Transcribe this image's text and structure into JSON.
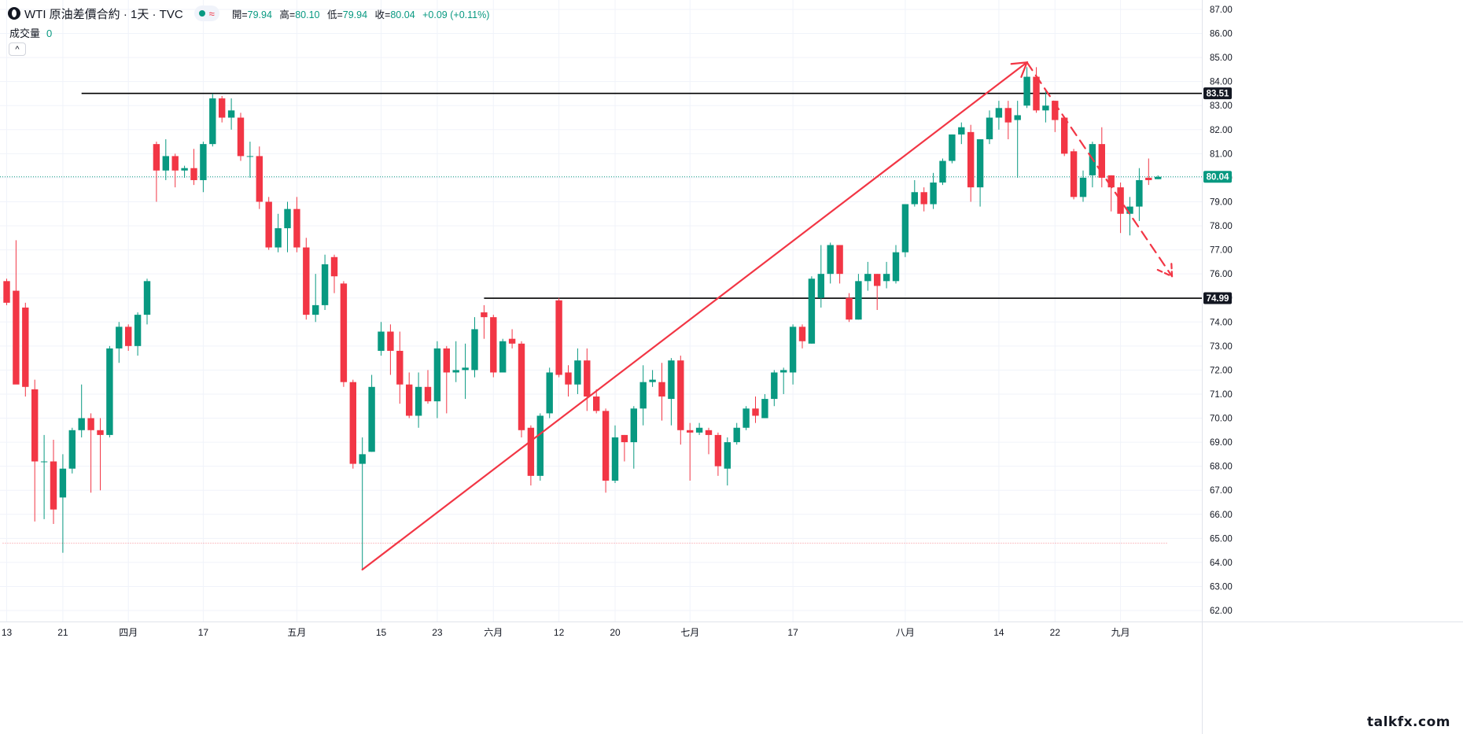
{
  "header": {
    "title": "WTI 原油差價合約 · 1天 · TVC",
    "wave_glyph": "≈",
    "open_label": "開=",
    "open": "79.94",
    "high_label": "高=",
    "high": "80.10",
    "low_label": "低=",
    "low": "79.94",
    "close_label": "收=",
    "close": "80.04",
    "change": "+0.09 (+0.11%)"
  },
  "volume": {
    "label": "成交量",
    "value": "0"
  },
  "collapse_glyph": "^",
  "watermark": "talkfx.com",
  "colors": {
    "up": "#089981",
    "down": "#f23645",
    "annotation": "#f23645",
    "level": "#000000"
  },
  "chart_data": {
    "type": "candlestick",
    "symbol": "WTI 原油差價合約",
    "interval": "1天",
    "y_range": [
      61.6,
      87.3
    ],
    "y_ticks": [
      62,
      63,
      64,
      65,
      66,
      67,
      68,
      69,
      70,
      71,
      72,
      73,
      74,
      75,
      76,
      77,
      78,
      79,
      80,
      81,
      82,
      83,
      84,
      85,
      86,
      87
    ],
    "x_labels": [
      {
        "label": "13",
        "index": 0
      },
      {
        "label": "21",
        "index": 6
      },
      {
        "label": "四月",
        "index": 13
      },
      {
        "label": "17",
        "index": 21
      },
      {
        "label": "五月",
        "index": 31
      },
      {
        "label": "15",
        "index": 40
      },
      {
        "label": "23",
        "index": 46
      },
      {
        "label": "六月",
        "index": 52
      },
      {
        "label": "12",
        "index": 59
      },
      {
        "label": "20",
        "index": 65
      },
      {
        "label": "七月",
        "index": 73
      },
      {
        "label": "17",
        "index": 84
      },
      {
        "label": "八月",
        "index": 96
      },
      {
        "label": "14",
        "index": 106
      },
      {
        "label": "22",
        "index": 112
      },
      {
        "label": "九月",
        "index": 119
      }
    ],
    "candles": [
      [
        0,
        75.7,
        74.8,
        75.8,
        74.7
      ],
      [
        1,
        75.3,
        71.4,
        77.4,
        72.3
      ],
      [
        2,
        74.6,
        71.3,
        74.8,
        70.9
      ],
      [
        3,
        71.2,
        68.2,
        71.6,
        65.7
      ],
      [
        4,
        68.2,
        68.2,
        69.3,
        65.8
      ],
      [
        5,
        68.2,
        66.2,
        69.1,
        65.6
      ],
      [
        6,
        66.7,
        67.9,
        68.5,
        64.4
      ],
      [
        7,
        67.9,
        69.5,
        69.6,
        67.7
      ],
      [
        8,
        69.5,
        70.0,
        71.4,
        69.2
      ],
      [
        9,
        70.0,
        69.5,
        70.2,
        66.9
      ],
      [
        10,
        69.5,
        69.3,
        70.0,
        67.0
      ],
      [
        11,
        69.3,
        72.9,
        73.0,
        69.2
      ],
      [
        12,
        72.9,
        73.8,
        74.0,
        72.3
      ],
      [
        13,
        73.8,
        73.0,
        73.9,
        72.8
      ],
      [
        14,
        73.0,
        74.3,
        74.4,
        72.6
      ],
      [
        15,
        74.3,
        75.7,
        75.8,
        73.9
      ],
      [
        16,
        81.4,
        80.3,
        81.5,
        79.0
      ],
      [
        17,
        80.3,
        80.9,
        81.6,
        79.9
      ],
      [
        18,
        80.9,
        80.3,
        81.0,
        79.6
      ],
      [
        19,
        80.3,
        80.4,
        80.5,
        80.0
      ],
      [
        20,
        80.4,
        79.9,
        81.2,
        79.7
      ],
      [
        21,
        79.9,
        81.4,
        81.5,
        79.4
      ],
      [
        22,
        81.4,
        83.3,
        83.5,
        81.3
      ],
      [
        23,
        83.3,
        82.5,
        83.4,
        82.3
      ],
      [
        24,
        82.5,
        82.8,
        83.3,
        82.0
      ],
      [
        25,
        82.5,
        80.9,
        82.7,
        80.7
      ],
      [
        26,
        80.9,
        80.9,
        81.5,
        80.0
      ],
      [
        27,
        80.9,
        79.0,
        81.3,
        78.7
      ],
      [
        28,
        79.0,
        77.1,
        79.2,
        77.0
      ],
      [
        29,
        77.1,
        77.9,
        78.5,
        76.9
      ],
      [
        30,
        77.9,
        78.7,
        79.0,
        76.9
      ],
      [
        31,
        78.7,
        77.1,
        79.2,
        76.9
      ],
      [
        32,
        77.1,
        74.3,
        77.5,
        74.1
      ],
      [
        33,
        74.3,
        74.7,
        76.0,
        74.0
      ],
      [
        34,
        74.7,
        76.4,
        76.8,
        74.5
      ],
      [
        35,
        76.7,
        75.9,
        76.8,
        75.2
      ],
      [
        36,
        75.6,
        71.5,
        75.7,
        71.3
      ],
      [
        37,
        71.5,
        68.1,
        71.6,
        67.9
      ],
      [
        38,
        68.1,
        68.5,
        69.2,
        63.7
      ],
      [
        39,
        68.6,
        71.3,
        71.8,
        68.6
      ],
      [
        40,
        72.8,
        73.6,
        74.0,
        72.6
      ],
      [
        41,
        73.6,
        72.8,
        73.9,
        71.8
      ],
      [
        42,
        72.8,
        71.4,
        73.6,
        70.6
      ],
      [
        43,
        71.4,
        70.1,
        71.9,
        70.0
      ],
      [
        44,
        70.1,
        71.3,
        71.9,
        69.6
      ],
      [
        45,
        71.3,
        70.7,
        72.0,
        70.6
      ],
      [
        46,
        70.7,
        72.9,
        73.2,
        70.0
      ],
      [
        47,
        72.9,
        71.9,
        73.0,
        70.2
      ],
      [
        48,
        71.9,
        72.0,
        73.2,
        71.5
      ],
      [
        49,
        72.0,
        72.1,
        73.1,
        70.8
      ],
      [
        50,
        72.0,
        73.7,
        74.2,
        71.7
      ],
      [
        51,
        74.4,
        74.2,
        74.7,
        73.3
      ],
      [
        52,
        74.2,
        71.9,
        74.3,
        71.7
      ],
      [
        53,
        71.9,
        73.2,
        73.3,
        72.0
      ],
      [
        54,
        73.3,
        73.1,
        73.7,
        72.9
      ],
      [
        55,
        73.1,
        69.5,
        73.2,
        69.2
      ],
      [
        56,
        69.6,
        67.6,
        69.7,
        67.2
      ],
      [
        57,
        67.6,
        70.1,
        70.2,
        67.4
      ],
      [
        58,
        70.2,
        71.9,
        72.1,
        70.0
      ],
      [
        59,
        74.9,
        71.8,
        75.0,
        71.7
      ],
      [
        60,
        71.9,
        71.4,
        72.2,
        70.9
      ],
      [
        61,
        71.4,
        72.4,
        72.9,
        71.0
      ],
      [
        62,
        72.4,
        70.9,
        72.9,
        70.3
      ],
      [
        63,
        70.9,
        70.3,
        71.2,
        70.2
      ],
      [
        64,
        70.3,
        67.4,
        70.4,
        66.9
      ],
      [
        65,
        67.4,
        69.2,
        69.7,
        67.3
      ],
      [
        66,
        69.3,
        69.0,
        69.3,
        68.2
      ],
      [
        67,
        69.0,
        70.4,
        70.5,
        67.9
      ],
      [
        68,
        70.4,
        71.5,
        72.2,
        69.7
      ],
      [
        69,
        71.5,
        71.6,
        72.0,
        71.3
      ],
      [
        70,
        71.5,
        70.9,
        72.3,
        69.9
      ],
      [
        71,
        70.8,
        72.4,
        72.5,
        69.7
      ],
      [
        72,
        72.4,
        69.5,
        72.6,
        68.9
      ],
      [
        73,
        69.5,
        69.4,
        69.8,
        67.4
      ],
      [
        74,
        69.4,
        69.6,
        69.8,
        69.3
      ],
      [
        75,
        69.5,
        69.3,
        69.6,
        68.5
      ],
      [
        76,
        69.3,
        68.0,
        69.4,
        67.6
      ],
      [
        77,
        67.9,
        69.0,
        69.2,
        67.2
      ],
      [
        78,
        69.0,
        69.6,
        69.8,
        68.9
      ],
      [
        79,
        69.6,
        70.4,
        70.5,
        69.5
      ],
      [
        80,
        70.4,
        70.1,
        70.9,
        69.8
      ],
      [
        81,
        70.0,
        70.8,
        71.0,
        70.0
      ],
      [
        82,
        70.8,
        71.9,
        72.0,
        70.5
      ],
      [
        83,
        71.9,
        72.0,
        72.1,
        71.0
      ],
      [
        84,
        71.9,
        73.8,
        73.9,
        71.4
      ],
      [
        85,
        73.8,
        73.2,
        73.9,
        72.9
      ],
      [
        86,
        73.1,
        75.8,
        75.9,
        73.1
      ],
      [
        87,
        75.0,
        76.0,
        77.2,
        74.6
      ],
      [
        88,
        76.0,
        77.2,
        77.3,
        75.6
      ],
      [
        89,
        77.2,
        76.0,
        77.2,
        75.6
      ],
      [
        90,
        75.0,
        74.1,
        75.2,
        74.0
      ],
      [
        91,
        74.1,
        75.7,
        76.0,
        74.1
      ],
      [
        92,
        75.7,
        76.0,
        76.5,
        75.3
      ],
      [
        93,
        76.0,
        75.5,
        76.0,
        74.5
      ],
      [
        94,
        75.7,
        76.0,
        76.5,
        75.4
      ],
      [
        95,
        75.7,
        76.9,
        77.2,
        75.6
      ],
      [
        96,
        76.9,
        78.9,
        78.9,
        76.7
      ],
      [
        97,
        78.9,
        79.4,
        79.9,
        78.8
      ],
      [
        98,
        79.4,
        78.9,
        79.6,
        78.6
      ],
      [
        99,
        78.9,
        79.8,
        80.2,
        78.7
      ],
      [
        100,
        79.8,
        80.7,
        80.8,
        79.7
      ],
      [
        101,
        80.7,
        81.8,
        81.8,
        80.6
      ],
      [
        102,
        81.8,
        82.1,
        82.3,
        81.4
      ],
      [
        103,
        81.9,
        79.6,
        82.2,
        79.0
      ],
      [
        104,
        79.6,
        81.6,
        81.6,
        78.8
      ],
      [
        105,
        81.6,
        82.5,
        82.8,
        81.4
      ],
      [
        106,
        82.5,
        82.9,
        83.2,
        82.0
      ],
      [
        107,
        82.9,
        82.3,
        83.2,
        81.6
      ],
      [
        108,
        82.4,
        82.6,
        83.2,
        80.0
      ],
      [
        109,
        83.0,
        84.2,
        84.6,
        82.9
      ],
      [
        110,
        84.2,
        82.8,
        84.6,
        82.7
      ],
      [
        111,
        82.8,
        83.0,
        83.7,
        82.3
      ],
      [
        112,
        83.2,
        82.4,
        83.2,
        81.9
      ],
      [
        113,
        82.5,
        81.0,
        82.5,
        80.9
      ],
      [
        114,
        81.1,
        79.2,
        81.2,
        79.1
      ],
      [
        115,
        79.2,
        80.0,
        80.3,
        79.0
      ],
      [
        116,
        80.1,
        81.4,
        81.5,
        79.6
      ],
      [
        117,
        81.4,
        80.0,
        82.1,
        79.6
      ],
      [
        118,
        80.1,
        79.6,
        80.1,
        78.6
      ],
      [
        119,
        79.6,
        78.5,
        79.8,
        77.7
      ],
      [
        120,
        78.5,
        78.8,
        79.2,
        77.6
      ],
      [
        121,
        78.8,
        79.9,
        80.4,
        78.2
      ],
      [
        122,
        80.0,
        79.9,
        80.8,
        79.7
      ],
      [
        123,
        79.94,
        80.04,
        80.1,
        79.94
      ]
    ],
    "horizontal_levels": [
      {
        "price": 83.51,
        "label": "83.51",
        "from_index": 8
      },
      {
        "price": 74.99,
        "label": "74.99",
        "from_index": 51
      }
    ],
    "current_price": {
      "price": 80.04,
      "label": "80.04"
    },
    "lowest_line": {
      "price": 64.8,
      "from_index": 0,
      "to_index": 124
    },
    "annotations": [
      {
        "type": "arrow-solid",
        "from": [
          38,
          63.7
        ],
        "to": [
          109,
          84.8
        ]
      },
      {
        "type": "arrow-dashed",
        "from": [
          109,
          84.8
        ],
        "to": [
          124.5,
          75.9
        ]
      }
    ]
  }
}
